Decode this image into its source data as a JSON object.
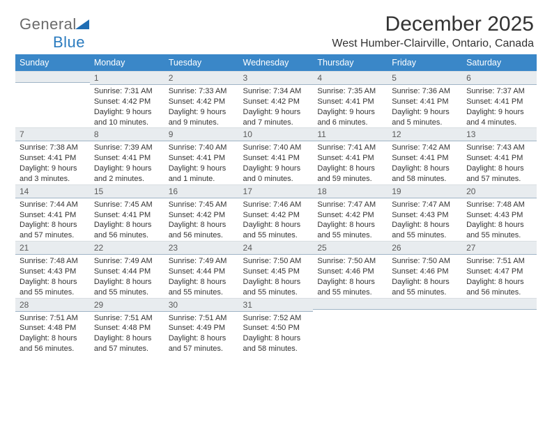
{
  "logo": {
    "text1": "General",
    "text2": "Blue"
  },
  "header": {
    "month_title": "December 2025",
    "location": "West Humber-Clairville, Ontario, Canada"
  },
  "dow": [
    "Sunday",
    "Monday",
    "Tuesday",
    "Wednesday",
    "Thursday",
    "Friday",
    "Saturday"
  ],
  "colors": {
    "header_bg": "#3a87c8",
    "header_text": "#ffffff",
    "daynum_bg": "#e8ecef",
    "daynum_border": "#9fb4c6",
    "body_text": "#333333",
    "logo_gray": "#6a6a6a",
    "logo_blue": "#2a7bbf"
  },
  "fonts": {
    "title_pt": 30,
    "location_pt": 16,
    "dow_pt": 12.5,
    "daynum_pt": 12,
    "info_pt": 11
  },
  "weeks": [
    [
      null,
      {
        "n": "1",
        "sr": "7:31 AM",
        "ss": "4:42 PM",
        "dl": "9 hours and 10 minutes."
      },
      {
        "n": "2",
        "sr": "7:33 AM",
        "ss": "4:42 PM",
        "dl": "9 hours and 9 minutes."
      },
      {
        "n": "3",
        "sr": "7:34 AM",
        "ss": "4:42 PM",
        "dl": "9 hours and 7 minutes."
      },
      {
        "n": "4",
        "sr": "7:35 AM",
        "ss": "4:41 PM",
        "dl": "9 hours and 6 minutes."
      },
      {
        "n": "5",
        "sr": "7:36 AM",
        "ss": "4:41 PM",
        "dl": "9 hours and 5 minutes."
      },
      {
        "n": "6",
        "sr": "7:37 AM",
        "ss": "4:41 PM",
        "dl": "9 hours and 4 minutes."
      }
    ],
    [
      {
        "n": "7",
        "sr": "7:38 AM",
        "ss": "4:41 PM",
        "dl": "9 hours and 3 minutes."
      },
      {
        "n": "8",
        "sr": "7:39 AM",
        "ss": "4:41 PM",
        "dl": "9 hours and 2 minutes."
      },
      {
        "n": "9",
        "sr": "7:40 AM",
        "ss": "4:41 PM",
        "dl": "9 hours and 1 minute."
      },
      {
        "n": "10",
        "sr": "7:40 AM",
        "ss": "4:41 PM",
        "dl": "9 hours and 0 minutes."
      },
      {
        "n": "11",
        "sr": "7:41 AM",
        "ss": "4:41 PM",
        "dl": "8 hours and 59 minutes."
      },
      {
        "n": "12",
        "sr": "7:42 AM",
        "ss": "4:41 PM",
        "dl": "8 hours and 58 minutes."
      },
      {
        "n": "13",
        "sr": "7:43 AM",
        "ss": "4:41 PM",
        "dl": "8 hours and 57 minutes."
      }
    ],
    [
      {
        "n": "14",
        "sr": "7:44 AM",
        "ss": "4:41 PM",
        "dl": "8 hours and 57 minutes."
      },
      {
        "n": "15",
        "sr": "7:45 AM",
        "ss": "4:41 PM",
        "dl": "8 hours and 56 minutes."
      },
      {
        "n": "16",
        "sr": "7:45 AM",
        "ss": "4:42 PM",
        "dl": "8 hours and 56 minutes."
      },
      {
        "n": "17",
        "sr": "7:46 AM",
        "ss": "4:42 PM",
        "dl": "8 hours and 55 minutes."
      },
      {
        "n": "18",
        "sr": "7:47 AM",
        "ss": "4:42 PM",
        "dl": "8 hours and 55 minutes."
      },
      {
        "n": "19",
        "sr": "7:47 AM",
        "ss": "4:43 PM",
        "dl": "8 hours and 55 minutes."
      },
      {
        "n": "20",
        "sr": "7:48 AM",
        "ss": "4:43 PM",
        "dl": "8 hours and 55 minutes."
      }
    ],
    [
      {
        "n": "21",
        "sr": "7:48 AM",
        "ss": "4:43 PM",
        "dl": "8 hours and 55 minutes."
      },
      {
        "n": "22",
        "sr": "7:49 AM",
        "ss": "4:44 PM",
        "dl": "8 hours and 55 minutes."
      },
      {
        "n": "23",
        "sr": "7:49 AM",
        "ss": "4:44 PM",
        "dl": "8 hours and 55 minutes."
      },
      {
        "n": "24",
        "sr": "7:50 AM",
        "ss": "4:45 PM",
        "dl": "8 hours and 55 minutes."
      },
      {
        "n": "25",
        "sr": "7:50 AM",
        "ss": "4:46 PM",
        "dl": "8 hours and 55 minutes."
      },
      {
        "n": "26",
        "sr": "7:50 AM",
        "ss": "4:46 PM",
        "dl": "8 hours and 55 minutes."
      },
      {
        "n": "27",
        "sr": "7:51 AM",
        "ss": "4:47 PM",
        "dl": "8 hours and 56 minutes."
      }
    ],
    [
      {
        "n": "28",
        "sr": "7:51 AM",
        "ss": "4:48 PM",
        "dl": "8 hours and 56 minutes."
      },
      {
        "n": "29",
        "sr": "7:51 AM",
        "ss": "4:48 PM",
        "dl": "8 hours and 57 minutes."
      },
      {
        "n": "30",
        "sr": "7:51 AM",
        "ss": "4:49 PM",
        "dl": "8 hours and 57 minutes."
      },
      {
        "n": "31",
        "sr": "7:52 AM",
        "ss": "4:50 PM",
        "dl": "8 hours and 58 minutes."
      },
      null,
      null,
      null
    ]
  ],
  "labels": {
    "sunrise": "Sunrise:",
    "sunset": "Sunset:",
    "daylight": "Daylight:"
  }
}
